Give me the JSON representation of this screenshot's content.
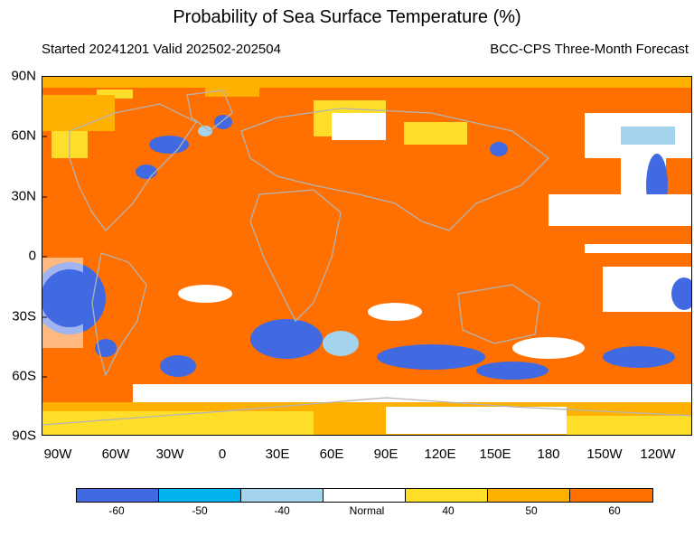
{
  "title": "Probability of Sea Surface Temperature (%)",
  "subtitle_left": "Started 20241201  Valid 202502-202504",
  "subtitle_right": "BCC-CPS Three-Month Forecast",
  "lat_labels": [
    "90N",
    "60N",
    "30N",
    "0",
    "30S",
    "60S",
    "90S"
  ],
  "lon_labels": [
    "90W",
    "60W",
    "30W",
    "0",
    "30E",
    "60E",
    "90E",
    "120E",
    "150E",
    "180",
    "150W",
    "120W"
  ],
  "legend": {
    "categories": [
      "-60",
      "-50",
      "-40",
      "Normal",
      "40",
      "50",
      "60"
    ],
    "colors": [
      "#4169e1",
      "#00b2ee",
      "#a4d3ee",
      "#ffffff",
      "#ffde2a",
      "#ffb000",
      "#ff7000"
    ]
  },
  "colors": {
    "land_outline": "#b4b4b4",
    "base_warm": "#ff7000"
  }
}
